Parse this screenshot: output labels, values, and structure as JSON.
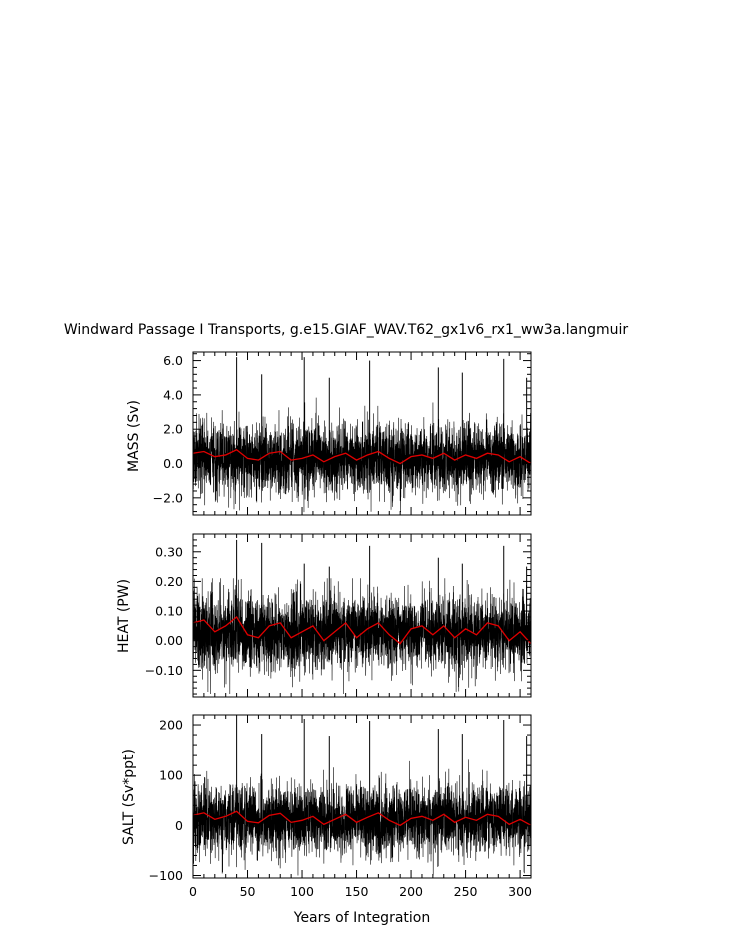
{
  "title": "Windward Passage I Transports, g.e15.GIAF_WAV.T62_gx1v6_rx1_ww3a.langmuir",
  "colors": {
    "raw_series": "#000000",
    "smoothed_series": "#e00000",
    "background": "#ffffff"
  },
  "chart_data": [
    {
      "type": "line",
      "panel": "mass",
      "ylabel": "MASS (Sv)",
      "xlim": [
        0,
        310
      ],
      "ylim": [
        -3.0,
        6.5
      ],
      "yticks": [
        6.0,
        4.0,
        2.0,
        0.0,
        -2.0
      ],
      "ytick_labels": [
        "6.0",
        "4.0",
        "2.0",
        "0.0",
        "−2.0"
      ],
      "series": [
        {
          "role": "raw",
          "color": "#000000",
          "mean": 0.3,
          "spread": 1.1,
          "min": -2.9,
          "max": 6.2,
          "spikes": [
            [
              40,
              6.2
            ],
            [
              63,
              5.2
            ],
            [
              102,
              6.2
            ],
            [
              125,
              5.0
            ],
            [
              162,
              6.0
            ],
            [
              225,
              5.6
            ],
            [
              247,
              5.3
            ],
            [
              285,
              6.1
            ],
            [
              306,
              5.0
            ]
          ]
        },
        {
          "role": "smoothed",
          "color": "#e00000",
          "x": [
            0,
            10,
            20,
            30,
            40,
            50,
            60,
            70,
            80,
            90,
            100,
            110,
            120,
            130,
            140,
            150,
            160,
            170,
            180,
            190,
            200,
            210,
            220,
            230,
            240,
            250,
            260,
            270,
            280,
            290,
            300,
            310
          ],
          "y": [
            0.6,
            0.7,
            0.4,
            0.5,
            0.8,
            0.3,
            0.2,
            0.6,
            0.7,
            0.2,
            0.3,
            0.5,
            0.1,
            0.4,
            0.6,
            0.2,
            0.5,
            0.7,
            0.3,
            0.0,
            0.4,
            0.5,
            0.3,
            0.6,
            0.2,
            0.5,
            0.3,
            0.6,
            0.5,
            0.1,
            0.4,
            0.0
          ]
        }
      ]
    },
    {
      "type": "line",
      "panel": "heat",
      "ylabel": "HEAT (PW)",
      "xlim": [
        0,
        310
      ],
      "ylim": [
        -0.19,
        0.36
      ],
      "yticks": [
        0.3,
        0.2,
        0.1,
        0.0,
        -0.1
      ],
      "ytick_labels": [
        "0.30",
        "0.20",
        "0.10",
        "0.00",
        "−0.10"
      ],
      "series": [
        {
          "role": "raw",
          "color": "#000000",
          "mean": 0.03,
          "spread": 0.07,
          "min": -0.18,
          "max": 0.34,
          "spikes": [
            [
              40,
              0.34
            ],
            [
              63,
              0.33
            ],
            [
              102,
              0.26
            ],
            [
              125,
              0.25
            ],
            [
              162,
              0.32
            ],
            [
              225,
              0.28
            ],
            [
              247,
              0.26
            ],
            [
              285,
              0.32
            ],
            [
              306,
              0.25
            ]
          ]
        },
        {
          "role": "smoothed",
          "color": "#e00000",
          "x": [
            0,
            10,
            20,
            30,
            40,
            50,
            60,
            70,
            80,
            90,
            100,
            110,
            120,
            130,
            140,
            150,
            160,
            170,
            180,
            190,
            200,
            210,
            220,
            230,
            240,
            250,
            260,
            270,
            280,
            290,
            300,
            310
          ],
          "y": [
            0.06,
            0.07,
            0.03,
            0.05,
            0.08,
            0.02,
            0.01,
            0.05,
            0.06,
            0.01,
            0.03,
            0.05,
            0.0,
            0.03,
            0.06,
            0.01,
            0.04,
            0.06,
            0.02,
            -0.01,
            0.04,
            0.05,
            0.02,
            0.05,
            0.01,
            0.04,
            0.02,
            0.06,
            0.05,
            0.0,
            0.03,
            -0.01
          ]
        }
      ]
    },
    {
      "type": "line",
      "panel": "salt",
      "ylabel": "SALT (Sv*ppt)",
      "xlabel": "Years of Integration",
      "xlim": [
        0,
        310
      ],
      "xticks": [
        0,
        50,
        100,
        150,
        200,
        250,
        300
      ],
      "xtick_labels": [
        "0",
        "50",
        "100",
        "150",
        "200",
        "250",
        "300"
      ],
      "ylim": [
        -105,
        220
      ],
      "yticks": [
        200,
        100,
        0,
        -100
      ],
      "ytick_labels": [
        "200",
        "100",
        "0",
        "−100"
      ],
      "series": [
        {
          "role": "raw",
          "color": "#000000",
          "mean": 11,
          "spread": 38,
          "min": -100,
          "max": 212,
          "spikes": [
            [
              40,
              212
            ],
            [
              63,
              182
            ],
            [
              102,
              212
            ],
            [
              125,
              178
            ],
            [
              162,
              208
            ],
            [
              225,
              192
            ],
            [
              247,
              182
            ],
            [
              285,
              210
            ],
            [
              306,
              178
            ]
          ]
        },
        {
          "role": "smoothed",
          "color": "#e00000",
          "x": [
            0,
            10,
            20,
            30,
            40,
            50,
            60,
            70,
            80,
            90,
            100,
            110,
            120,
            130,
            140,
            150,
            160,
            170,
            180,
            190,
            200,
            210,
            220,
            230,
            240,
            250,
            260,
            270,
            280,
            290,
            300,
            310
          ],
          "y": [
            20,
            25,
            12,
            18,
            28,
            8,
            5,
            20,
            24,
            6,
            10,
            18,
            2,
            12,
            22,
            6,
            16,
            25,
            10,
            0,
            14,
            18,
            10,
            22,
            6,
            16,
            10,
            22,
            18,
            2,
            12,
            0
          ]
        }
      ]
    }
  ]
}
